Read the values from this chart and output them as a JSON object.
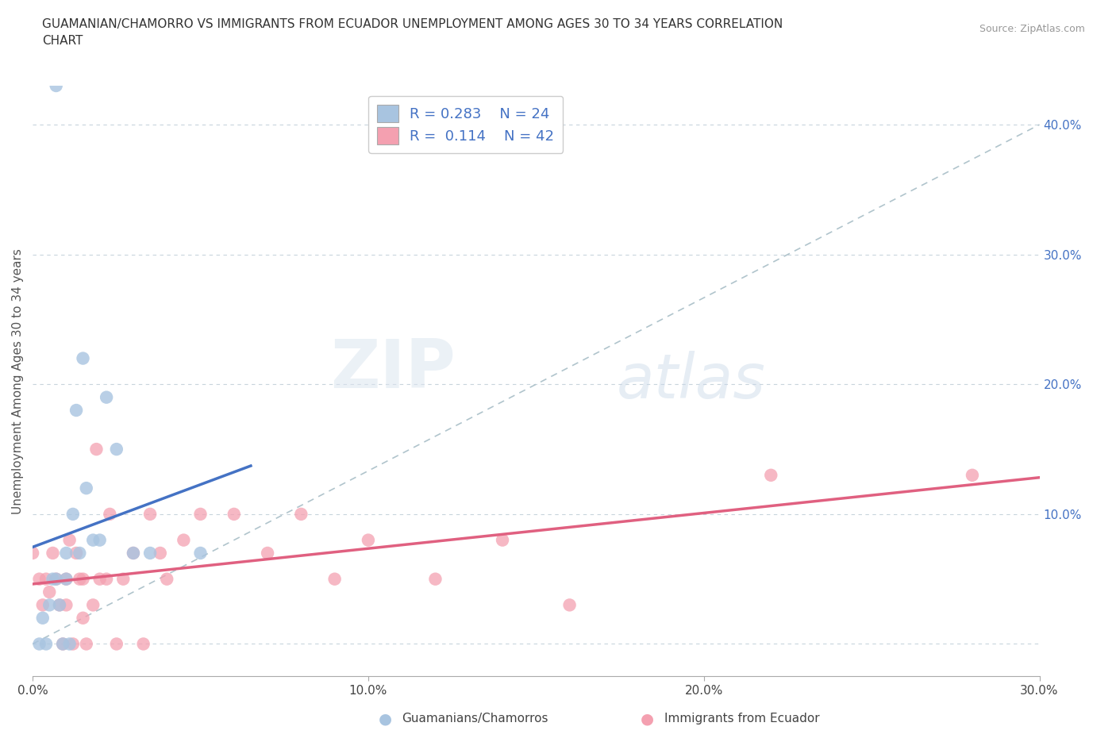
{
  "title": "GUAMANIAN/CHAMORRO VS IMMIGRANTS FROM ECUADOR UNEMPLOYMENT AMONG AGES 30 TO 34 YEARS CORRELATION\nCHART",
  "source": "Source: ZipAtlas.com",
  "ylabel": "Unemployment Among Ages 30 to 34 years",
  "xlim": [
    0.0,
    0.3
  ],
  "ylim": [
    -0.025,
    0.43
  ],
  "yticks": [
    0.0,
    0.1,
    0.2,
    0.3,
    0.4
  ],
  "ytick_labels": [
    "",
    "10.0%",
    "20.0%",
    "30.0%",
    "40.0%"
  ],
  "xticks": [
    0.0,
    0.1,
    0.2,
    0.3
  ],
  "xtick_labels": [
    "0.0%",
    "10.0%",
    "20.0%",
    "30.0%"
  ],
  "blue_R": 0.283,
  "blue_N": 24,
  "pink_R": 0.114,
  "pink_N": 42,
  "blue_color": "#a8c4e0",
  "pink_color": "#f4a0b0",
  "blue_line_color": "#4472c4",
  "pink_line_color": "#e06080",
  "trend_line_color": "#b0c4cc",
  "watermark_zip": "ZIP",
  "watermark_atlas": "atlas",
  "background_color": "#ffffff",
  "grid_color": "#c8d4dc",
  "blue_scatter_x": [
    0.002,
    0.003,
    0.004,
    0.005,
    0.006,
    0.007,
    0.008,
    0.009,
    0.01,
    0.01,
    0.011,
    0.012,
    0.013,
    0.014,
    0.015,
    0.016,
    0.018,
    0.02,
    0.022,
    0.025,
    0.03,
    0.035,
    0.05,
    0.007
  ],
  "blue_scatter_y": [
    0.0,
    0.02,
    0.0,
    0.03,
    0.05,
    0.05,
    0.03,
    0.0,
    0.07,
    0.05,
    0.0,
    0.1,
    0.18,
    0.07,
    0.22,
    0.12,
    0.08,
    0.08,
    0.19,
    0.15,
    0.07,
    0.07,
    0.07,
    0.43
  ],
  "pink_scatter_x": [
    0.0,
    0.002,
    0.003,
    0.004,
    0.005,
    0.006,
    0.007,
    0.008,
    0.009,
    0.01,
    0.01,
    0.011,
    0.012,
    0.013,
    0.014,
    0.015,
    0.015,
    0.016,
    0.018,
    0.019,
    0.02,
    0.022,
    0.023,
    0.025,
    0.027,
    0.03,
    0.033,
    0.035,
    0.038,
    0.04,
    0.045,
    0.05,
    0.06,
    0.07,
    0.08,
    0.09,
    0.1,
    0.12,
    0.14,
    0.16,
    0.22,
    0.28
  ],
  "pink_scatter_y": [
    0.07,
    0.05,
    0.03,
    0.05,
    0.04,
    0.07,
    0.05,
    0.03,
    0.0,
    0.03,
    0.05,
    0.08,
    0.0,
    0.07,
    0.05,
    0.02,
    0.05,
    0.0,
    0.03,
    0.15,
    0.05,
    0.05,
    0.1,
    0.0,
    0.05,
    0.07,
    0.0,
    0.1,
    0.07,
    0.05,
    0.08,
    0.1,
    0.1,
    0.07,
    0.1,
    0.05,
    0.08,
    0.05,
    0.08,
    0.03,
    0.13,
    0.13
  ],
  "blue_line_x0": 0.0,
  "blue_line_x1": 0.065,
  "pink_line_x0": 0.0,
  "pink_line_x1": 0.3
}
